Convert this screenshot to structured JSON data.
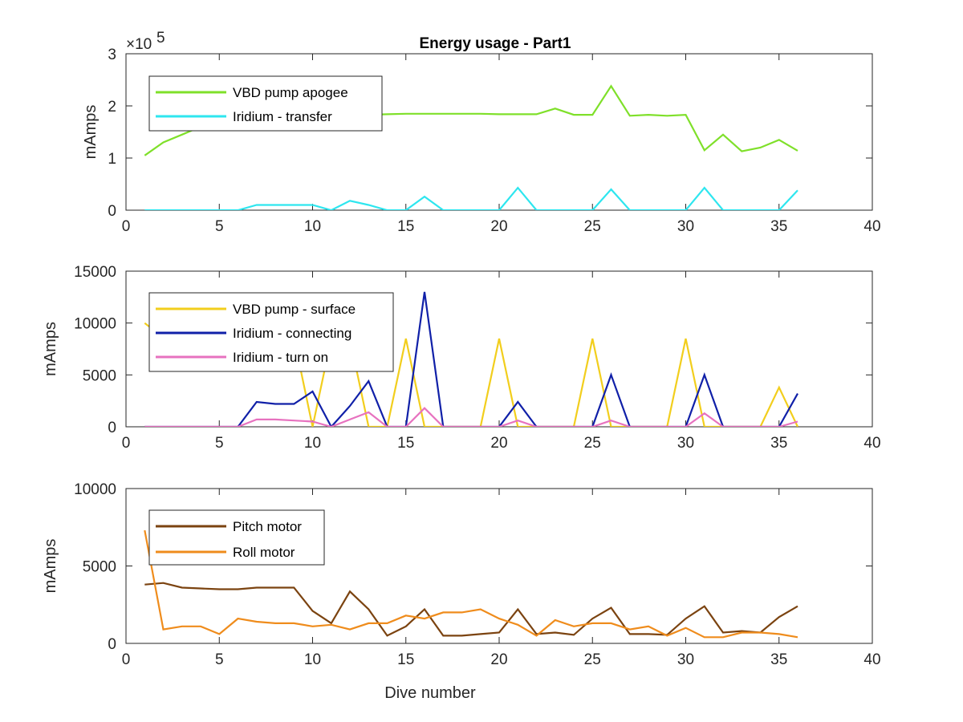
{
  "chart_data": [
    {
      "type": "line",
      "title": "Energy usage - Part1",
      "xlabel": "",
      "ylabel": "mAmps",
      "xlim": [
        0,
        40
      ],
      "ylim": [
        0,
        300000
      ],
      "xticks": [
        "0",
        "5",
        "10",
        "15",
        "20",
        "25",
        "30",
        "35",
        "40"
      ],
      "yticks": [
        "0",
        "1",
        "2",
        "3"
      ],
      "ytick_values": [
        0,
        100000,
        200000,
        300000
      ],
      "exponent_label": "×10",
      "exponent_power": "5",
      "legend": "top-left",
      "x": [
        1,
        2,
        3,
        4,
        5,
        6,
        7,
        8,
        9,
        10,
        11,
        12,
        13,
        14,
        15,
        16,
        17,
        18,
        19,
        20,
        21,
        22,
        23,
        24,
        25,
        26,
        27,
        28,
        29,
        30,
        31,
        32,
        33,
        34,
        35,
        36
      ],
      "series": [
        {
          "name": "VBD pump apogee",
          "color": "#7fe02a",
          "values": [
            105000,
            130000,
            145000,
            160000,
            170000,
            175000,
            178000,
            180000,
            181000,
            182000,
            182000,
            183000,
            183000,
            184000,
            185000,
            185000,
            185000,
            185000,
            185000,
            184000,
            184000,
            184000,
            195000,
            183000,
            183000,
            238000,
            181000,
            183000,
            181000,
            183000,
            115000,
            145000,
            113000,
            120000,
            135000,
            114000
          ]
        },
        {
          "name": "Iridium - transfer",
          "color": "#2ee6ef",
          "values": [
            0,
            0,
            0,
            0,
            0,
            0,
            10000,
            10000,
            10000,
            10000,
            0,
            18000,
            10000,
            0,
            0,
            26000,
            0,
            0,
            0,
            0,
            43000,
            0,
            0,
            0,
            0,
            40000,
            0,
            0,
            0,
            0,
            43000,
            0,
            0,
            0,
            0,
            38000
          ]
        }
      ]
    },
    {
      "type": "line",
      "title": "",
      "xlabel": "",
      "ylabel": "mAmps",
      "xlim": [
        0,
        40
      ],
      "ylim": [
        0,
        15000
      ],
      "xticks": [
        "0",
        "5",
        "10",
        "15",
        "20",
        "25",
        "30",
        "35",
        "40"
      ],
      "yticks": [
        "0",
        "5000",
        "10000",
        "15000"
      ],
      "ytick_values": [
        0,
        5000,
        10000,
        15000
      ],
      "legend": "top-left",
      "x": [
        1,
        2,
        3,
        4,
        5,
        6,
        7,
        8,
        9,
        10,
        11,
        12,
        13,
        14,
        15,
        16,
        17,
        18,
        19,
        20,
        21,
        22,
        23,
        24,
        25,
        26,
        27,
        28,
        29,
        30,
        31,
        32,
        33,
        34,
        35,
        36
      ],
      "series": [
        {
          "name": "VBD pump - surface",
          "color": "#f2ce1d",
          "values": [
            10000,
            8600,
            8600,
            8600,
            8600,
            8600,
            8600,
            8600,
            8600,
            0,
            8500,
            8500,
            0,
            0,
            8500,
            0,
            0,
            0,
            0,
            8500,
            0,
            0,
            0,
            0,
            8500,
            0,
            0,
            0,
            0,
            8500,
            0,
            0,
            0,
            0,
            3800,
            0
          ]
        },
        {
          "name": "Iridium - connecting",
          "color": "#1020a8",
          "values": [
            0,
            0,
            0,
            0,
            0,
            0,
            2400,
            2200,
            2200,
            3400,
            0,
            2000,
            4400,
            0,
            0,
            13000,
            0,
            0,
            0,
            0,
            2400,
            0,
            0,
            0,
            0,
            5000,
            0,
            0,
            0,
            0,
            5000,
            0,
            0,
            0,
            0,
            3200
          ]
        },
        {
          "name": "Iridium - turn on",
          "color": "#e772bf",
          "values": [
            0,
            0,
            0,
            0,
            0,
            0,
            700,
            700,
            600,
            500,
            0,
            700,
            1400,
            0,
            0,
            1800,
            0,
            0,
            0,
            0,
            600,
            0,
            0,
            0,
            0,
            600,
            0,
            0,
            0,
            0,
            1300,
            0,
            0,
            0,
            0,
            500
          ]
        }
      ]
    },
    {
      "type": "line",
      "title": "",
      "xlabel": "Dive number",
      "ylabel": "mAmps",
      "xlim": [
        0,
        40
      ],
      "ylim": [
        0,
        10000
      ],
      "xticks": [
        "0",
        "5",
        "10",
        "15",
        "20",
        "25",
        "30",
        "35",
        "40"
      ],
      "yticks": [
        "0",
        "5000",
        "10000"
      ],
      "ytick_values": [
        0,
        5000,
        10000
      ],
      "legend": "top-left",
      "x": [
        1,
        2,
        3,
        4,
        5,
        6,
        7,
        8,
        9,
        10,
        11,
        12,
        13,
        14,
        15,
        16,
        17,
        18,
        19,
        20,
        21,
        22,
        23,
        24,
        25,
        26,
        27,
        28,
        29,
        30,
        31,
        32,
        33,
        34,
        35,
        36
      ],
      "series": [
        {
          "name": "Pitch motor",
          "color": "#7b4310",
          "values": [
            3800,
            3900,
            3600,
            3550,
            3500,
            3500,
            3600,
            3600,
            3600,
            2100,
            1300,
            3350,
            2200,
            500,
            1100,
            2200,
            500,
            500,
            600,
            700,
            2200,
            600,
            700,
            550,
            1600,
            2300,
            600,
            600,
            550,
            1600,
            2400,
            700,
            800,
            700,
            1700,
            2400
          ]
        },
        {
          "name": "Roll motor",
          "color": "#ef8c1c",
          "values": [
            7300,
            900,
            1100,
            1100,
            600,
            1600,
            1400,
            1300,
            1300,
            1100,
            1200,
            900,
            1300,
            1300,
            1800,
            1600,
            2000,
            2000,
            2200,
            1600,
            1200,
            500,
            1500,
            1100,
            1300,
            1300,
            900,
            1100,
            500,
            1000,
            400,
            400,
            700,
            700,
            600,
            400
          ]
        }
      ]
    }
  ]
}
